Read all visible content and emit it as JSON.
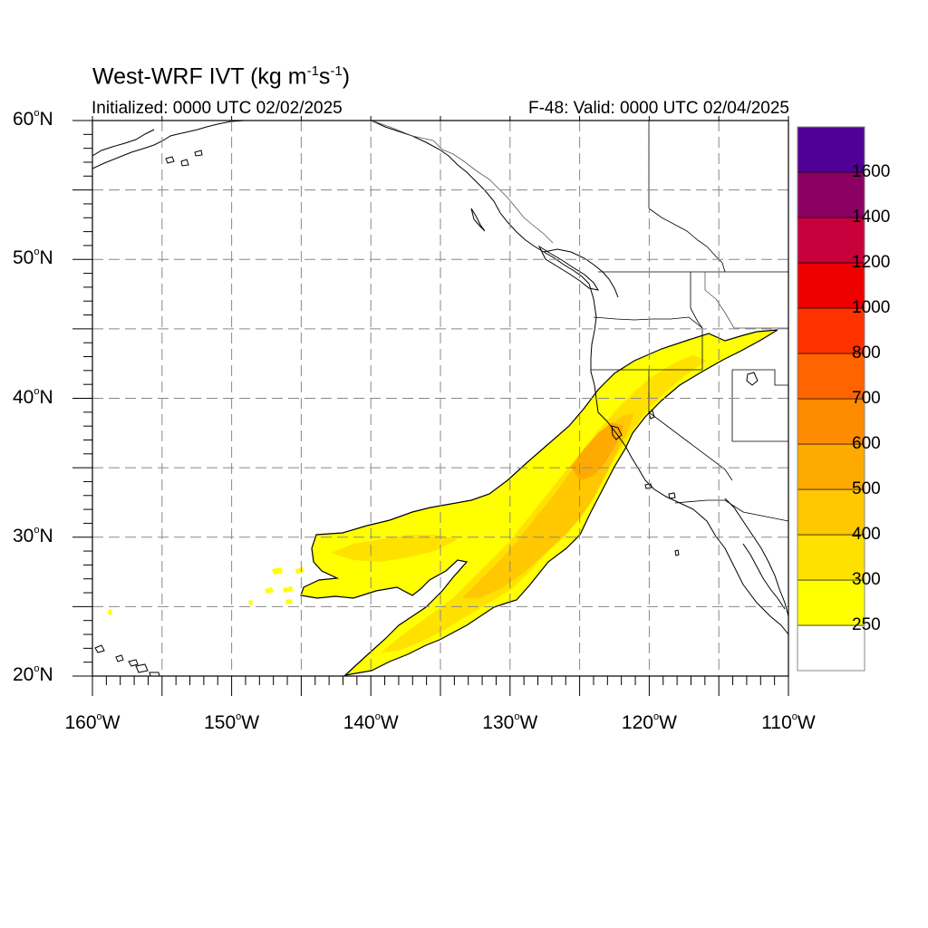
{
  "title": {
    "main": "West-WRF IVT (kg m",
    "sup1": "-1",
    "mid": "s",
    "sup2": "-1",
    "end": ")"
  },
  "subtitle_left": "Initialized: 0000 UTC 02/02/2025",
  "subtitle_right": "F-48: Valid: 0000 UTC 02/04/2025",
  "map": {
    "lon_range": [
      -160,
      -110
    ],
    "lat_range": [
      20,
      60
    ],
    "lat_labels": [
      {
        "value": 60,
        "num": "60",
        "hemi": "N"
      },
      {
        "value": 50,
        "num": "50",
        "hemi": "N"
      },
      {
        "value": 40,
        "num": "40",
        "hemi": "N"
      },
      {
        "value": 30,
        "num": "30",
        "hemi": "N"
      },
      {
        "value": 20,
        "num": "20",
        "hemi": "N"
      }
    ],
    "lon_labels": [
      {
        "value": -160,
        "num": "160",
        "hemi": "W"
      },
      {
        "value": -150,
        "num": "150",
        "hemi": "W"
      },
      {
        "value": -140,
        "num": "140",
        "hemi": "W"
      },
      {
        "value": -130,
        "num": "130",
        "hemi": "W"
      },
      {
        "value": -120,
        "num": "120",
        "hemi": "W"
      },
      {
        "value": -110,
        "num": "110",
        "hemi": "W"
      }
    ],
    "grid_dashed": true,
    "shaded_variable": "IVT",
    "max_level_shown": 600
  },
  "colorbar": {
    "levels": [
      "250",
      "300",
      "400",
      "500",
      "600",
      "700",
      "800",
      "1000",
      "1200",
      "1400",
      "1600"
    ],
    "colors": [
      "#ffffff",
      "#ffff00",
      "#ffe100",
      "#ffc800",
      "#ffaa00",
      "#ff8c00",
      "#ff6400",
      "#ff3200",
      "#ee0000",
      "#c8003c",
      "#8c0064",
      "#500096"
    ]
  }
}
